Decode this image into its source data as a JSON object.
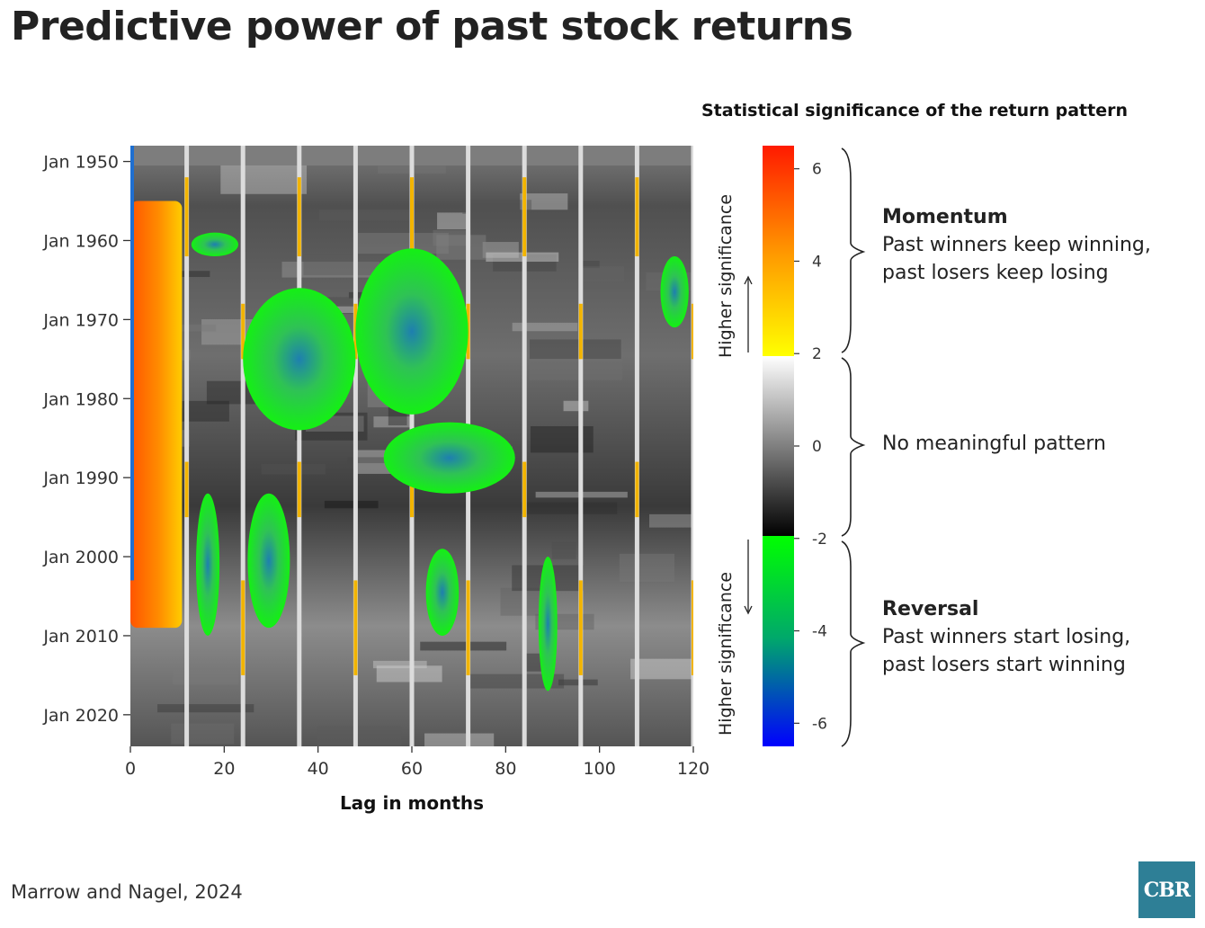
{
  "title": "Predictive power of past stock returns",
  "source": "Marrow and Nagel, 2024",
  "logo_text": "CBR",
  "colorbar": {
    "title": "Statistical significance of the return pattern",
    "ticks": [
      "6",
      "4",
      "2",
      "0",
      "-2",
      "-4",
      "-6"
    ],
    "arrow_label_top": "Higher significance",
    "arrow_label_bottom": "Higher significance",
    "colors": {
      "momentum_low": "#ffff00",
      "momentum_mid": "#ff9900",
      "momentum_high": "#ff1a00",
      "neutral_high": "#ffffff",
      "neutral_low": "#000000",
      "reversal_low": "#00ff00",
      "reversal_mid": "#00a86b",
      "reversal_high": "#0000ff"
    }
  },
  "annotations": {
    "momentum": {
      "heading": "Momentum",
      "line1": "Past winners keep winning,",
      "line2": "past losers keep losing"
    },
    "none": {
      "text": "No meaningful pattern"
    },
    "reversal": {
      "heading": "Reversal",
      "line1": "Past winners start losing,",
      "line2": "past losers start winning"
    }
  },
  "chart_data": {
    "type": "heatmap",
    "title": "Predictive power of past stock returns",
    "xlabel": "Lag in months",
    "ylabel": "",
    "x_ticks": [
      "0",
      "20",
      "40",
      "60",
      "80",
      "100",
      "120"
    ],
    "y_ticks": [
      "Jan 1950",
      "Jan 1960",
      "Jan 1970",
      "Jan 1980",
      "Jan 1990",
      "Jan 2000",
      "Jan 2010",
      "Jan 2020"
    ],
    "xlim": [
      0,
      120
    ],
    "ylim": [
      1948,
      2024
    ],
    "value_range": [
      -6.5,
      6.5
    ],
    "thresholds": {
      "momentum": 2,
      "reversal": -2
    },
    "annual_lag_columns": [
      12,
      24,
      36,
      48,
      60,
      72,
      84,
      96,
      108,
      120
    ],
    "momentum_regions": [
      {
        "lag": [
          0,
          11
        ],
        "years": [
          1955,
          2009
        ],
        "value": 5
      }
    ],
    "reversal_regions": [
      {
        "lag": [
          13,
          23
        ],
        "years": [
          1959,
          1962
        ],
        "value": -2.6
      },
      {
        "lag": [
          24,
          48
        ],
        "years": [
          1966,
          1984
        ],
        "value": -3.2
      },
      {
        "lag": [
          48,
          72
        ],
        "years": [
          1961,
          1982
        ],
        "value": -3.4
      },
      {
        "lag": [
          54,
          82
        ],
        "years": [
          1983,
          1992
        ],
        "value": -4.2
      },
      {
        "lag": [
          14,
          19
        ],
        "years": [
          1992,
          2010
        ],
        "value": -2.6
      },
      {
        "lag": [
          25,
          34
        ],
        "years": [
          1992,
          2009
        ],
        "value": -2.7
      },
      {
        "lag": [
          63,
          70
        ],
        "years": [
          1999,
          2010
        ],
        "value": -2.8
      },
      {
        "lag": [
          87,
          91
        ],
        "years": [
          2000,
          2017
        ],
        "value": -2.6
      },
      {
        "lag": [
          113,
          119
        ],
        "years": [
          1962,
          1971
        ],
        "value": -2.5
      }
    ]
  }
}
